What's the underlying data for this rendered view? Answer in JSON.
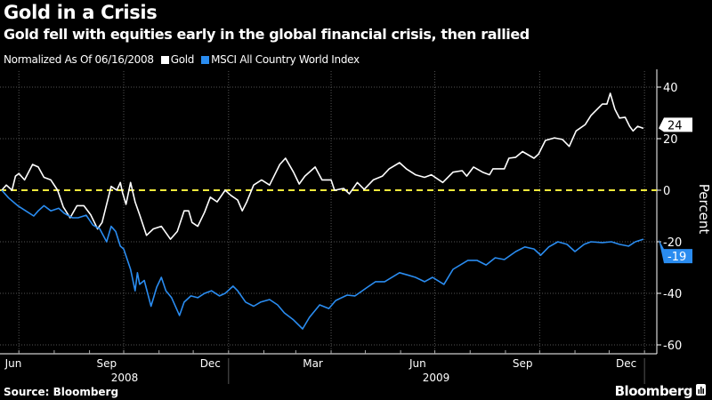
{
  "title": "Gold in a Crisis",
  "subtitle": "Gold fell with equities early in the global financial crisis, then rallied",
  "legend": {
    "note": "Normalized As Of 06/16/2008",
    "items": [
      {
        "label": "Gold",
        "color": "#ffffff"
      },
      {
        "label": "MSCI All Country World Index",
        "color": "#2a8cf0"
      }
    ]
  },
  "source": "Source: Bloomberg",
  "brand": "Bloomberg",
  "colors": {
    "background": "#000000",
    "gold": "#ffffff",
    "msci": "#2a8cf0",
    "zero_line": "#f2ea3c",
    "grid": "#555555"
  },
  "chart_data": {
    "type": "line",
    "title": "Gold in a Crisis",
    "subtitle": "Gold fell with equities early in the global financial crisis, then rallied",
    "ylabel": "Percent",
    "ylim": [
      -60,
      40
    ],
    "yticks": [
      40,
      20,
      0,
      -20,
      -40,
      -60
    ],
    "xlim": [
      "2008-06-16",
      "2009-12-31"
    ],
    "x_tick_labels": [
      {
        "label": "Jun",
        "date": "2008-06-16"
      },
      {
        "label": "Sep",
        "date": "2008-09-16"
      },
      {
        "label": "Dec",
        "date": "2008-12-16"
      },
      {
        "label": "Mar",
        "date": "2009-03-16"
      },
      {
        "label": "Jun",
        "date": "2009-06-16"
      },
      {
        "label": "Sep",
        "date": "2009-09-16"
      },
      {
        "label": "Dec",
        "date": "2009-12-16"
      }
    ],
    "x_year_labels": [
      {
        "label": "2008"
      },
      {
        "label": "2009"
      }
    ],
    "grid": true,
    "axis_side": "right",
    "reference_line": {
      "value": 0,
      "style": "dashed",
      "color": "#f2ea3c"
    },
    "series": [
      {
        "name": "Gold",
        "color": "#ffffff",
        "last_value_label": "24",
        "points": [
          [
            "2008-06-16",
            0
          ],
          [
            "2008-06-20",
            2
          ],
          [
            "2008-06-25",
            0
          ],
          [
            "2008-06-28",
            5.5
          ],
          [
            "2008-07-01",
            6.5
          ],
          [
            "2008-07-06",
            4
          ],
          [
            "2008-07-13",
            10
          ],
          [
            "2008-07-18",
            9
          ],
          [
            "2008-07-23",
            5
          ],
          [
            "2008-07-29",
            4
          ],
          [
            "2008-08-04",
            0
          ],
          [
            "2008-08-09",
            -6.5
          ],
          [
            "2008-08-15",
            -10.7
          ],
          [
            "2008-08-21",
            -6
          ],
          [
            "2008-08-27",
            -6
          ],
          [
            "2008-09-02",
            -9.5
          ],
          [
            "2008-09-08",
            -15
          ],
          [
            "2008-09-12",
            -12.5
          ],
          [
            "2008-09-16",
            -5.5
          ],
          [
            "2008-09-20",
            1.5
          ],
          [
            "2008-09-25",
            0
          ],
          [
            "2008-09-28",
            3
          ],
          [
            "2008-09-30",
            -1
          ],
          [
            "2008-10-03",
            -5.5
          ],
          [
            "2008-10-07",
            3
          ],
          [
            "2008-10-11",
            -4.5
          ],
          [
            "2008-10-15",
            -9.5
          ],
          [
            "2008-10-21",
            -17.5
          ],
          [
            "2008-10-27",
            -15
          ],
          [
            "2008-11-03",
            -14
          ],
          [
            "2008-11-11",
            -19
          ],
          [
            "2008-11-17",
            -16
          ],
          [
            "2008-11-23",
            -8
          ],
          [
            "2008-11-27",
            -8
          ],
          [
            "2008-11-30",
            -12.5
          ],
          [
            "2008-12-05",
            -14
          ],
          [
            "2008-12-11",
            -8.5
          ],
          [
            "2008-12-16",
            -2.7
          ],
          [
            "2008-12-22",
            -4.5
          ],
          [
            "2008-12-29",
            0
          ],
          [
            "2009-01-03",
            -2
          ],
          [
            "2009-01-09",
            -3.8
          ],
          [
            "2009-01-13",
            -8
          ],
          [
            "2009-01-17",
            -4.5
          ],
          [
            "2009-01-23",
            2
          ],
          [
            "2009-01-30",
            4
          ],
          [
            "2009-02-06",
            2
          ],
          [
            "2009-02-15",
            10
          ],
          [
            "2009-02-20",
            12.4
          ],
          [
            "2009-02-27",
            7
          ],
          [
            "2009-03-04",
            2.4
          ],
          [
            "2009-03-09",
            5.5
          ],
          [
            "2009-03-18",
            9
          ],
          [
            "2009-03-24",
            4
          ],
          [
            "2009-04-01",
            4
          ],
          [
            "2009-04-04",
            0
          ],
          [
            "2009-04-12",
            0.7
          ],
          [
            "2009-04-17",
            -1.4
          ],
          [
            "2009-04-24",
            3
          ],
          [
            "2009-04-30",
            0.3
          ],
          [
            "2009-05-08",
            4
          ],
          [
            "2009-05-16",
            5.5
          ],
          [
            "2009-05-22",
            8.3
          ],
          [
            "2009-05-31",
            10.7
          ],
          [
            "2009-06-06",
            8.3
          ],
          [
            "2009-06-14",
            6
          ],
          [
            "2009-06-22",
            5
          ],
          [
            "2009-06-28",
            6
          ],
          [
            "2009-07-08",
            3
          ],
          [
            "2009-07-17",
            7
          ],
          [
            "2009-07-25",
            7.6
          ],
          [
            "2009-07-29",
            5.5
          ],
          [
            "2009-08-04",
            9
          ],
          [
            "2009-08-12",
            7
          ],
          [
            "2009-08-18",
            6
          ],
          [
            "2009-08-21",
            8.3
          ],
          [
            "2009-08-31",
            8.3
          ],
          [
            "2009-09-04",
            12.4
          ],
          [
            "2009-09-10",
            12.8
          ],
          [
            "2009-09-16",
            15
          ],
          [
            "2009-09-26",
            12.4
          ],
          [
            "2009-09-30",
            14
          ],
          [
            "2009-10-06",
            19.3
          ],
          [
            "2009-10-14",
            20.3
          ],
          [
            "2009-10-21",
            19.7
          ],
          [
            "2009-10-27",
            17
          ],
          [
            "2009-11-02",
            23
          ],
          [
            "2009-11-10",
            25.5
          ],
          [
            "2009-11-15",
            29
          ],
          [
            "2009-11-25",
            33.4
          ],
          [
            "2009-11-29",
            33.4
          ],
          [
            "2009-12-02",
            37.6
          ],
          [
            "2009-12-06",
            31.4
          ],
          [
            "2009-12-10",
            28
          ],
          [
            "2009-12-15",
            28.3
          ],
          [
            "2009-12-19",
            24.8
          ],
          [
            "2009-12-22",
            23
          ],
          [
            "2009-12-26",
            24.8
          ],
          [
            "2009-12-31",
            24
          ]
        ]
      },
      {
        "name": "MSCI All Country World Index",
        "color": "#2a8cf0",
        "last_value_label": "-19",
        "points": [
          [
            "2008-06-16",
            0
          ],
          [
            "2008-06-22",
            -3
          ],
          [
            "2008-06-30",
            -6
          ],
          [
            "2008-07-07",
            -8
          ],
          [
            "2008-07-14",
            -10
          ],
          [
            "2008-07-18",
            -8
          ],
          [
            "2008-07-23",
            -6
          ],
          [
            "2008-07-29",
            -8
          ],
          [
            "2008-08-05",
            -7
          ],
          [
            "2008-08-10",
            -9
          ],
          [
            "2008-08-17",
            -10.7
          ],
          [
            "2008-08-22",
            -10.7
          ],
          [
            "2008-08-29",
            -9.7
          ],
          [
            "2008-09-04",
            -13.5
          ],
          [
            "2008-09-10",
            -15
          ],
          [
            "2008-09-16",
            -20
          ],
          [
            "2008-09-20",
            -14
          ],
          [
            "2008-09-24",
            -16
          ],
          [
            "2008-09-28",
            -21.7
          ],
          [
            "2008-10-01",
            -22.8
          ],
          [
            "2008-10-07",
            -30.7
          ],
          [
            "2008-10-11",
            -39
          ],
          [
            "2008-10-13",
            -32
          ],
          [
            "2008-10-15",
            -36.5
          ],
          [
            "2008-10-19",
            -35
          ],
          [
            "2008-10-25",
            -45
          ],
          [
            "2008-10-30",
            -37.6
          ],
          [
            "2008-11-03",
            -33.8
          ],
          [
            "2008-11-07",
            -39
          ],
          [
            "2008-11-12",
            -41.7
          ],
          [
            "2008-11-19",
            -48.6
          ],
          [
            "2008-11-23",
            -43.4
          ],
          [
            "2008-11-29",
            -41
          ],
          [
            "2008-12-05",
            -41.7
          ],
          [
            "2008-12-11",
            -40
          ],
          [
            "2008-12-17",
            -39
          ],
          [
            "2008-12-24",
            -41
          ],
          [
            "2008-12-29",
            -40
          ],
          [
            "2009-01-05",
            -37.2
          ],
          [
            "2009-01-09",
            -39
          ],
          [
            "2009-01-16",
            -43.4
          ],
          [
            "2009-01-23",
            -45
          ],
          [
            "2009-01-29",
            -43.4
          ],
          [
            "2009-02-06",
            -42.4
          ],
          [
            "2009-02-13",
            -44.5
          ],
          [
            "2009-02-19",
            -47.6
          ],
          [
            "2009-02-27",
            -50.3
          ],
          [
            "2009-03-07",
            -53.8
          ],
          [
            "2009-03-13",
            -49.3
          ],
          [
            "2009-03-22",
            -44.5
          ],
          [
            "2009-03-30",
            -45.9
          ],
          [
            "2009-04-05",
            -42.8
          ],
          [
            "2009-04-15",
            -40.7
          ],
          [
            "2009-04-22",
            -41
          ],
          [
            "2009-05-03",
            -37.6
          ],
          [
            "2009-05-10",
            -35.5
          ],
          [
            "2009-05-18",
            -35.5
          ],
          [
            "2009-05-31",
            -32
          ],
          [
            "2009-06-08",
            -33
          ],
          [
            "2009-06-14",
            -33.8
          ],
          [
            "2009-06-22",
            -35.5
          ],
          [
            "2009-06-29",
            -33.8
          ],
          [
            "2009-07-09",
            -36.5
          ],
          [
            "2009-07-17",
            -30.7
          ],
          [
            "2009-07-30",
            -27.2
          ],
          [
            "2009-08-07",
            -27.2
          ],
          [
            "2009-08-15",
            -29
          ],
          [
            "2009-08-23",
            -26.2
          ],
          [
            "2009-08-31",
            -26.9
          ],
          [
            "2009-09-10",
            -23.8
          ],
          [
            "2009-09-18",
            -22
          ],
          [
            "2009-09-26",
            -22.8
          ],
          [
            "2009-10-02",
            -25.2
          ],
          [
            "2009-10-09",
            -22
          ],
          [
            "2009-10-17",
            -20
          ],
          [
            "2009-10-25",
            -21
          ],
          [
            "2009-11-01",
            -23.8
          ],
          [
            "2009-11-09",
            -21
          ],
          [
            "2009-11-15",
            -20
          ],
          [
            "2009-11-25",
            -20.3
          ],
          [
            "2009-12-03",
            -20
          ],
          [
            "2009-12-10",
            -21
          ],
          [
            "2009-12-18",
            -21.7
          ],
          [
            "2009-12-24",
            -20
          ],
          [
            "2009-12-31",
            -19
          ]
        ]
      }
    ]
  }
}
